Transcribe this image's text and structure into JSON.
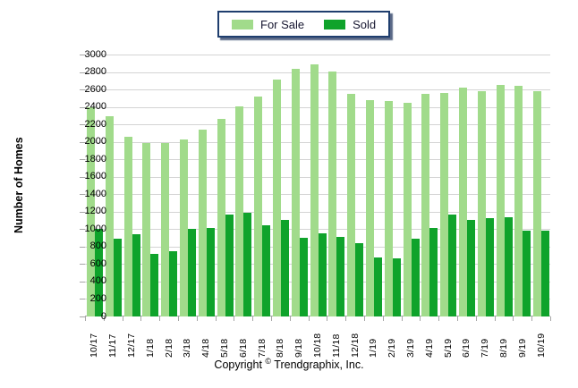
{
  "legend": {
    "items": [
      {
        "label": "For Sale",
        "color": "#a1db8b"
      },
      {
        "label": "Sold",
        "color": "#0fa32b"
      }
    ]
  },
  "y_axis_title": "Number of Homes",
  "footer": {
    "copyright_prefix": "Copyright",
    "copyright_symbol": "©",
    "copyright_suffix": "Trendgraphix, Inc."
  },
  "colors": {
    "for_sale": "#a1db8b",
    "sold": "#0fa32b",
    "gridline": "#d4d4d4",
    "axis": "#a6a6a6",
    "legend_border": "#1f3e6e"
  },
  "chart_data": {
    "type": "bar",
    "title": "",
    "xlabel": "",
    "ylabel": "Number of Homes",
    "ylim": [
      0,
      3000
    ],
    "ytick_step": 200,
    "grid": true,
    "legend_position": "top-center",
    "categories": [
      "10/17",
      "11/17",
      "12/17",
      "1/18",
      "2/18",
      "3/18",
      "4/18",
      "5/18",
      "6/18",
      "7/18",
      "8/18",
      "9/18",
      "10/18",
      "11/18",
      "12/18",
      "1/19",
      "2/19",
      "3/19",
      "4/19",
      "5/19",
      "6/19",
      "7/19",
      "8/19",
      "9/19",
      "10/19"
    ],
    "series": [
      {
        "name": "For Sale",
        "color": "#a1db8b",
        "values": [
          2400,
          2290,
          2060,
          1990,
          1985,
          2030,
          2140,
          2265,
          2405,
          2515,
          2715,
          2840,
          2890,
          2805,
          2550,
          2480,
          2470,
          2450,
          2545,
          2555,
          2620,
          2585,
          2655,
          2645,
          2580
        ]
      },
      {
        "name": "Sold",
        "color": "#0fa32b",
        "values": [
          1005,
          890,
          940,
          715,
          745,
          1000,
          1015,
          1165,
          1190,
          1045,
          1110,
          900,
          950,
          910,
          840,
          680,
          670,
          890,
          1010,
          1170,
          1110,
          1130,
          1140,
          985,
          980
        ]
      }
    ]
  }
}
